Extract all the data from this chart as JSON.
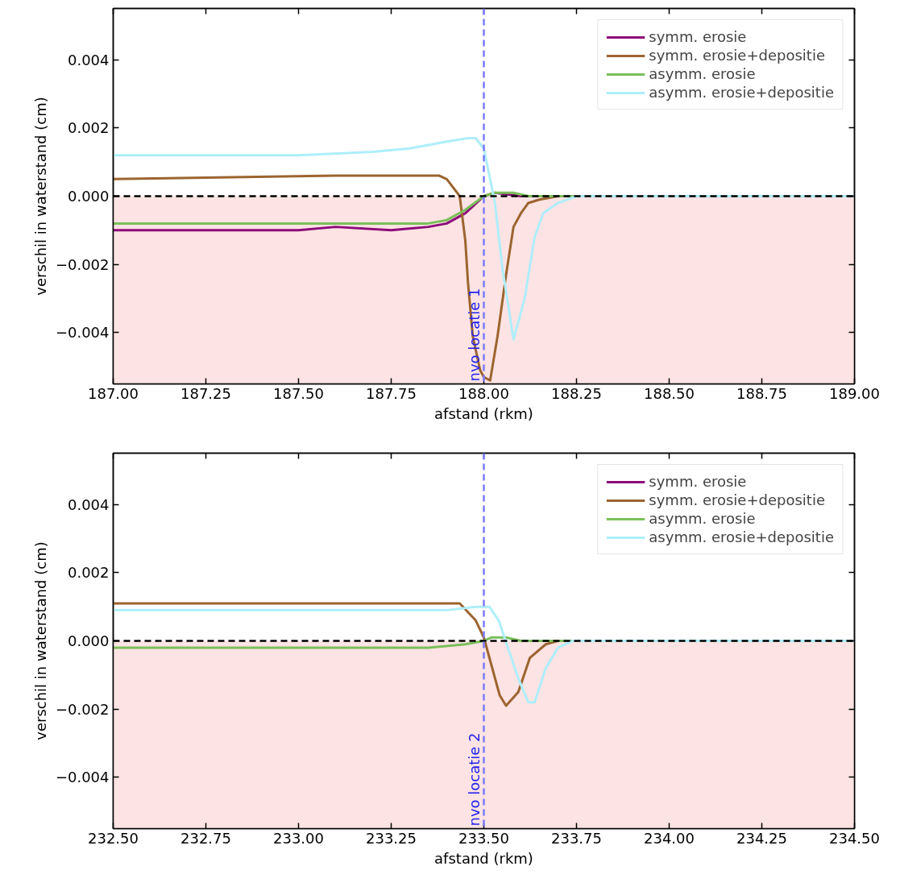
{
  "chart_data": [
    {
      "type": "line",
      "xlabel": "afstand (rkm)",
      "ylabel": "verschil in waterstand (cm)",
      "legend": "top right",
      "grid": false,
      "xlim": [
        187.0,
        189.0
      ],
      "ylim": [
        -0.0055,
        0.0055
      ],
      "xticks": [
        {
          "value": 187.0,
          "label": "187.00"
        },
        {
          "value": 187.25,
          "label": "187.25"
        },
        {
          "value": 187.5,
          "label": "187.50"
        },
        {
          "value": 187.75,
          "label": "187.75"
        },
        {
          "value": 188.0,
          "label": "188.00"
        },
        {
          "value": 188.25,
          "label": "188.25"
        },
        {
          "value": 188.5,
          "label": "188.50"
        },
        {
          "value": 188.75,
          "label": "188.75"
        },
        {
          "value": 189.0,
          "label": "189.00"
        }
      ],
      "yticks": [
        {
          "value": -0.004,
          "label": "−0.004"
        },
        {
          "value": -0.002,
          "label": "−0.002"
        },
        {
          "value": 0,
          "label": "0.000"
        },
        {
          "value": 0.002,
          "label": "0.002"
        },
        {
          "value": 0.004,
          "label": "0.004"
        }
      ],
      "series": [
        {
          "name": "symm. erosie",
          "color": "#8c0a7a",
          "x": [
            187.0,
            187.25,
            187.5,
            187.6,
            187.75,
            187.85,
            187.9,
            187.95,
            188.0,
            188.03,
            188.1,
            188.2,
            189.0
          ],
          "values": [
            -0.001,
            -0.001,
            -0.001,
            -0.0009,
            -0.001,
            -0.0009,
            -0.0008,
            -0.0005,
            0,
            0.0001,
            0,
            0,
            0
          ]
        },
        {
          "name": "symm. erosie+depositie",
          "color": "#9c6430",
          "x": [
            187.0,
            187.6,
            187.85,
            187.88,
            187.9,
            187.935,
            187.95,
            187.957,
            187.97,
            187.99,
            188.0,
            188.017,
            188.037,
            188.06,
            188.08,
            188.1,
            188.12,
            188.15,
            188.2,
            189.0
          ],
          "values": [
            0.0005,
            0.0006,
            0.0006,
            0.0006,
            0.0005,
            0,
            -0.0013,
            -0.0025,
            -0.0041,
            -0.0051,
            -0.0053,
            -0.0054,
            -0.0041,
            -0.0023,
            -0.0009,
            -0.0005,
            -0.0002,
            -0.0001,
            0,
            0
          ]
        },
        {
          "name": "asymm. erosie",
          "color": "#7abf5a",
          "x": [
            187.0,
            187.5,
            187.6,
            187.75,
            187.85,
            187.9,
            187.95,
            188.0,
            188.03,
            188.08,
            188.12,
            189.0
          ],
          "values": [
            -0.0008,
            -0.0008,
            -0.0008,
            -0.0008,
            -0.0008,
            -0.0007,
            -0.0004,
            0,
            0.0001,
            0.0001,
            0,
            0
          ]
        },
        {
          "name": "asymm. erosie+depositie",
          "color": "#aeeefa",
          "x": [
            187.0,
            187.5,
            187.7,
            187.8,
            187.9,
            187.957,
            187.978,
            188.0,
            188.03,
            188.05,
            188.08,
            188.11,
            188.137,
            188.16,
            188.2,
            188.25,
            189.0
          ],
          "values": [
            0.0012,
            0.0012,
            0.0013,
            0.0014,
            0.0016,
            0.0017,
            0.0017,
            0.0014,
            -0.0002,
            -0.0021,
            -0.0042,
            -0.003,
            -0.0012,
            -0.0005,
            -0.0002,
            0,
            0
          ]
        }
      ],
      "ref_lines": [
        {
          "axis": "y",
          "value": 0,
          "color": "#000000",
          "line_style": "dashed"
        },
        {
          "axis": "x",
          "value": 188.0,
          "label": "nvo locatie 1",
          "color": "#7b7bff",
          "line_style": "dashed"
        }
      ],
      "bands": [
        {
          "axis": "y",
          "from": -0.0055,
          "to": 0,
          "color": "#fde3e3"
        }
      ]
    },
    {
      "type": "line",
      "xlabel": "afstand (rkm)",
      "ylabel": "verschil in waterstand (cm)",
      "legend": "top right",
      "grid": false,
      "xlim": [
        232.5,
        234.5
      ],
      "ylim": [
        -0.0055,
        0.0055
      ],
      "xticks": [
        {
          "value": 232.5,
          "label": "232.50"
        },
        {
          "value": 232.75,
          "label": "232.75"
        },
        {
          "value": 233.0,
          "label": "233.00"
        },
        {
          "value": 233.25,
          "label": "233.25"
        },
        {
          "value": 233.5,
          "label": "233.50"
        },
        {
          "value": 233.75,
          "label": "233.75"
        },
        {
          "value": 234.0,
          "label": "234.00"
        },
        {
          "value": 234.25,
          "label": "234.25"
        },
        {
          "value": 234.5,
          "label": "234.50"
        }
      ],
      "yticks": [
        {
          "value": -0.004,
          "label": "−0.004"
        },
        {
          "value": -0.002,
          "label": "−0.002"
        },
        {
          "value": 0,
          "label": "0.000"
        },
        {
          "value": 0.002,
          "label": "0.002"
        },
        {
          "value": 0.004,
          "label": "0.004"
        }
      ],
      "series": [
        {
          "name": "symm. erosie",
          "color": "#8c0a7a"
        },
        {
          "name": "symm. erosie+depositie",
          "color": "#9c6430",
          "x": [
            232.5,
            233.0,
            233.4,
            233.435,
            233.478,
            233.5,
            233.543,
            233.56,
            233.593,
            233.624,
            233.667,
            233.7,
            234.5
          ],
          "values": [
            0.0011,
            0.0011,
            0.0011,
            0.0011,
            0.0006,
            0.0001,
            -0.0016,
            -0.0019,
            -0.0015,
            -0.0005,
            -0.0001,
            0,
            0
          ]
        },
        {
          "name": "asymm. erosie",
          "color": "#7abf5a",
          "x": [
            232.5,
            233.0,
            233.35,
            233.45,
            233.5,
            233.52,
            233.56,
            233.6,
            233.65,
            234.5
          ],
          "values": [
            -0.0002,
            -0.0002,
            -0.0002,
            -0.0001,
            0,
            0.0001,
            0.0001,
            0,
            0,
            0
          ]
        },
        {
          "name": "asymm. erosie+depositie",
          "color": "#aeeefa",
          "x": [
            232.5,
            233.0,
            233.4,
            233.478,
            233.515,
            233.54,
            233.565,
            233.593,
            233.62,
            233.637,
            233.667,
            233.7,
            233.74,
            234.5
          ],
          "values": [
            0.0009,
            0.0009,
            0.0009,
            0.001,
            0.001,
            0.0006,
            -0.0002,
            -0.0011,
            -0.0018,
            -0.0018,
            -0.0008,
            -0.0002,
            0,
            0
          ]
        }
      ],
      "ref_lines": [
        {
          "axis": "y",
          "value": 0,
          "color": "#000000",
          "line_style": "dashed"
        },
        {
          "axis": "x",
          "value": 233.5,
          "label": "nvo locatie 2",
          "color": "#7b7bff",
          "line_style": "dashed"
        }
      ],
      "bands": [
        {
          "axis": "y",
          "from": -0.0055,
          "to": 0,
          "color": "#fde3e3"
        }
      ]
    }
  ]
}
